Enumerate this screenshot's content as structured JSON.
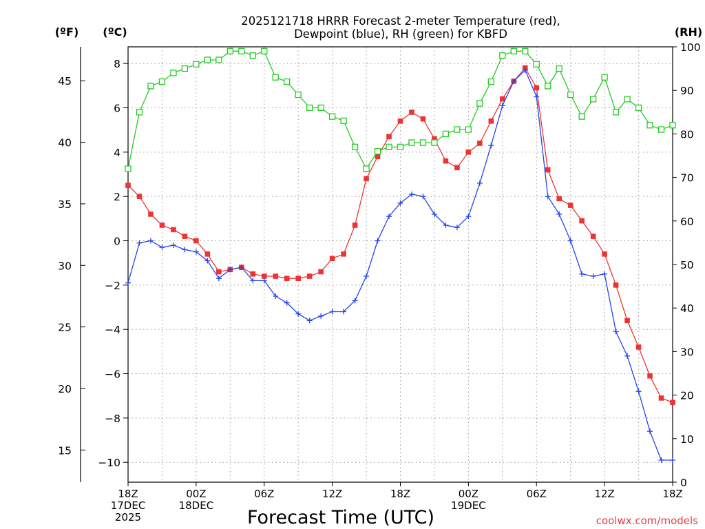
{
  "title_line1": "2025121718 HRRR Forecast 2-meter Temperature (red),",
  "title_line2": "Dewpoint (blue), RH (green) for KBFD",
  "unit_f": "(ºF)",
  "unit_c": "(ºC)",
  "unit_rh": "(RH)",
  "x_axis_title": "Forecast Time (UTC)",
  "credit": "coolwx.com/models",
  "colors": {
    "temperature": "#ee3333",
    "dewpoint": "#2244ee",
    "rh": "#22cc22",
    "grid": "#999999"
  },
  "chart_data": {
    "type": "line",
    "title": "2025121718 HRRR Forecast 2-meter Temperature (red), Dewpoint (blue), RH (green) for KBFD",
    "xlabel": "Forecast Time (UTC)",
    "x_hours": [
      0,
      1,
      2,
      3,
      4,
      5,
      6,
      7,
      8,
      9,
      10,
      11,
      12,
      13,
      14,
      15,
      16,
      17,
      18,
      19,
      20,
      21,
      22,
      23,
      24,
      25,
      26,
      27,
      28,
      29,
      30,
      31,
      32,
      33,
      34,
      35,
      36,
      37,
      38,
      39,
      40,
      41,
      42,
      43,
      44,
      45,
      46,
      47,
      48
    ],
    "x_range": [
      0,
      48
    ],
    "x_ticks": [
      {
        "hour": 0,
        "lines": [
          "18Z",
          "17DEC",
          "2025"
        ]
      },
      {
        "hour": 6,
        "lines": [
          "00Z",
          "18DEC"
        ]
      },
      {
        "hour": 12,
        "lines": [
          "06Z"
        ]
      },
      {
        "hour": 18,
        "lines": [
          "12Z"
        ]
      },
      {
        "hour": 24,
        "lines": [
          "18Z"
        ]
      },
      {
        "hour": 30,
        "lines": [
          "00Z",
          "19DEC"
        ]
      },
      {
        "hour": 36,
        "lines": [
          "06Z"
        ]
      },
      {
        "hour": 42,
        "lines": [
          "12Z"
        ]
      },
      {
        "hour": 48,
        "lines": [
          "18Z"
        ]
      }
    ],
    "y_celsius": {
      "range": [
        -11,
        8.7
      ],
      "ticks": [
        -10,
        -8,
        -6,
        -4,
        -2,
        0,
        2,
        4,
        6,
        8
      ],
      "tick_labels": [
        "−10",
        "−8",
        "−6",
        "−4",
        "−2",
        "0",
        "2",
        "4",
        "6",
        "8"
      ]
    },
    "y_fahrenheit": {
      "ticks": [
        15,
        20,
        25,
        30,
        35,
        40,
        45
      ],
      "tick_labels": [
        "15",
        "20",
        "25",
        "30",
        "35",
        "40",
        "45"
      ]
    },
    "y_rh": {
      "range": [
        0,
        100
      ],
      "ticks": [
        0,
        10,
        20,
        30,
        40,
        50,
        60,
        70,
        80,
        90,
        100
      ],
      "tick_labels": [
        "0",
        "10",
        "20",
        "30",
        "40",
        "50",
        "60",
        "70",
        "80",
        "90",
        "100"
      ]
    },
    "series": [
      {
        "name": "Temperature",
        "unit": "C",
        "axis": "celsius",
        "marker": "filled-square",
        "values": [
          2.5,
          2.0,
          1.2,
          0.7,
          0.5,
          0.2,
          0.0,
          -0.6,
          -1.4,
          -1.3,
          -1.2,
          -1.5,
          -1.6,
          -1.6,
          -1.7,
          -1.7,
          -1.6,
          -1.4,
          -0.8,
          -0.6,
          0.7,
          2.8,
          3.8,
          4.7,
          5.4,
          5.8,
          5.5,
          4.6,
          3.6,
          3.3,
          4.0,
          4.4,
          5.4,
          6.4,
          7.2,
          7.8,
          6.9,
          3.2,
          1.9,
          1.6,
          0.9,
          0.2,
          -0.6,
          -2.0,
          -3.6,
          -4.8,
          -6.1,
          -7.1,
          -7.3
        ]
      },
      {
        "name": "Dewpoint",
        "unit": "C",
        "axis": "celsius",
        "marker": "plus",
        "values": [
          -1.9,
          -0.1,
          0.0,
          -0.3,
          -0.2,
          -0.4,
          -0.5,
          -0.9,
          -1.7,
          -1.3,
          -1.2,
          -1.8,
          -1.8,
          -2.5,
          -2.8,
          -3.3,
          -3.6,
          -3.4,
          -3.2,
          -3.2,
          -2.7,
          -1.6,
          0.0,
          1.1,
          1.7,
          2.1,
          2.0,
          1.2,
          0.7,
          0.6,
          1.1,
          2.6,
          4.3,
          6.1,
          7.2,
          7.7,
          6.5,
          2.0,
          1.2,
          0.0,
          -1.5,
          -1.6,
          -1.5,
          -4.1,
          -5.2,
          -6.8,
          -8.6,
          -9.9,
          -9.9
        ]
      },
      {
        "name": "RH",
        "unit": "%",
        "axis": "rh",
        "marker": "open-square",
        "values": [
          72,
          85,
          91,
          92,
          94,
          95,
          96,
          97,
          97,
          99,
          99,
          98,
          99,
          93,
          92,
          89,
          86,
          86,
          84,
          83,
          77,
          72,
          76,
          77,
          77,
          78,
          78,
          78,
          80,
          81,
          81,
          87,
          92,
          98,
          99,
          99,
          96,
          91,
          95,
          89,
          84,
          88,
          93,
          85,
          88,
          86,
          82,
          81,
          82
        ]
      }
    ]
  }
}
